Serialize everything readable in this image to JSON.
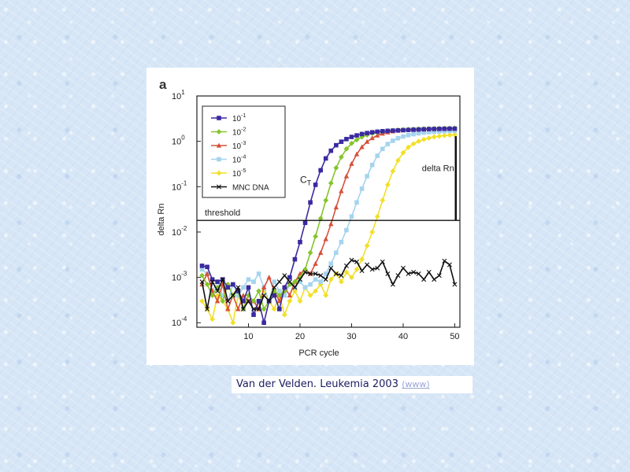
{
  "chart_data": {
    "type": "line",
    "panel_label": "a",
    "xlabel": "PCR cycle",
    "ylabel": "delta Rn",
    "xlim": [
      0,
      51
    ],
    "xticks": [
      10,
      20,
      30,
      40,
      50
    ],
    "ylim_log10": [
      -4.1,
      1.0
    ],
    "yticks": [
      {
        "base": "10",
        "exp": "1"
      },
      {
        "base": "10",
        "exp": "0"
      },
      {
        "base": "10",
        "exp": "-1"
      },
      {
        "base": "10",
        "exp": "-2"
      },
      {
        "base": "10",
        "exp": "-3"
      },
      {
        "base": "10",
        "exp": "-4"
      }
    ],
    "ytick_values_log10": [
      1,
      0,
      -1,
      -2,
      -3,
      -4
    ],
    "threshold": {
      "label": "threshold",
      "value": 0.018
    },
    "ct_label": {
      "main": "C",
      "sub": "T"
    },
    "delta_rn_label": "delta Rn",
    "x": [
      1,
      2,
      3,
      4,
      5,
      6,
      7,
      8,
      9,
      10,
      11,
      12,
      13,
      14,
      15,
      16,
      17,
      18,
      19,
      20,
      21,
      22,
      23,
      24,
      25,
      26,
      27,
      28,
      29,
      30,
      31,
      32,
      33,
      34,
      35,
      36,
      37,
      38,
      39,
      40,
      41,
      42,
      43,
      44,
      45,
      46,
      47,
      48,
      49,
      50
    ],
    "series": [
      {
        "name": "10-1",
        "base": "10",
        "exp": "-1",
        "color": "#3a2aa0",
        "marker": "square",
        "values": [
          0.0018,
          0.0017,
          0.0009,
          0.0008,
          0.0009,
          0.0006,
          0.0007,
          0.0005,
          0.0003,
          0.0006,
          0.00015,
          0.0003,
          0.0001,
          0.0003,
          0.0004,
          0.0002,
          0.0006,
          0.001,
          0.0025,
          0.006,
          0.016,
          0.045,
          0.11,
          0.23,
          0.42,
          0.62,
          0.82,
          0.98,
          1.12,
          1.25,
          1.35,
          1.45,
          1.52,
          1.58,
          1.63,
          1.67,
          1.7,
          1.72,
          1.74,
          1.76,
          1.78,
          1.8,
          1.82,
          1.84,
          1.86,
          1.87,
          1.88,
          1.89,
          1.9,
          1.9
        ]
      },
      {
        "name": "10-2",
        "base": "10",
        "exp": "-2",
        "color": "#86c42a",
        "marker": "diamond",
        "values": [
          0.0011,
          0.0007,
          0.0004,
          0.0006,
          0.0003,
          0.0007,
          0.0004,
          0.0005,
          0.0002,
          0.0004,
          0.0003,
          0.0005,
          0.0002,
          0.0003,
          0.0005,
          0.0004,
          0.0005,
          0.0007,
          0.0008,
          0.001,
          0.0015,
          0.0035,
          0.008,
          0.02,
          0.05,
          0.12,
          0.26,
          0.45,
          0.68,
          0.9,
          1.08,
          1.25,
          1.38,
          1.5,
          1.58,
          1.65,
          1.7,
          1.74,
          1.78,
          1.81,
          1.84,
          1.86,
          1.88,
          1.89,
          1.9,
          1.91,
          1.92,
          1.93,
          1.94,
          1.95
        ]
      },
      {
        "name": "10-3",
        "base": "10",
        "exp": "-3",
        "color": "#d8503a",
        "marker": "triangle",
        "values": [
          0.0007,
          0.0012,
          0.0005,
          0.0003,
          0.0007,
          0.0002,
          0.0004,
          0.0002,
          0.0004,
          0.0003,
          0.0003,
          0.0002,
          0.0006,
          0.001,
          0.0005,
          0.0003,
          0.0006,
          0.0004,
          0.0008,
          0.0012,
          0.0015,
          0.0012,
          0.002,
          0.0035,
          0.007,
          0.015,
          0.035,
          0.08,
          0.17,
          0.32,
          0.52,
          0.75,
          0.98,
          1.18,
          1.35,
          1.48,
          1.58,
          1.66,
          1.72,
          1.77,
          1.81,
          1.84,
          1.87,
          1.89,
          1.91,
          1.92,
          1.93,
          1.94,
          1.95,
          1.96
        ]
      },
      {
        "name": "10-4",
        "base": "10",
        "exp": "-4",
        "color": "#a6d4ee",
        "marker": "square",
        "values": [
          0.0015,
          0.0012,
          0.0005,
          0.0008,
          0.0004,
          0.0003,
          0.0007,
          0.0004,
          0.0006,
          0.0009,
          0.0008,
          0.0012,
          0.0006,
          0.0003,
          0.0008,
          0.0005,
          0.0004,
          0.0007,
          0.0006,
          0.0008,
          0.0006,
          0.0007,
          0.0009,
          0.0008,
          0.0012,
          0.002,
          0.0035,
          0.006,
          0.011,
          0.022,
          0.045,
          0.09,
          0.17,
          0.3,
          0.48,
          0.68,
          0.87,
          1.03,
          1.17,
          1.28,
          1.37,
          1.44,
          1.5,
          1.55,
          1.59,
          1.62,
          1.65,
          1.67,
          1.69,
          1.7
        ]
      },
      {
        "name": "10-5",
        "base": "10",
        "exp": "-5",
        "color": "#f2e028",
        "marker": "diamond",
        "values": [
          0.0003,
          0.0002,
          0.00012,
          0.0004,
          0.0003,
          0.0002,
          0.0001,
          0.0004,
          0.0002,
          0.0004,
          0.0003,
          0.0002,
          0.0005,
          0.0003,
          0.0002,
          0.0004,
          0.00015,
          0.0003,
          0.0005,
          0.0003,
          0.0006,
          0.0004,
          0.0005,
          0.0007,
          0.0004,
          0.0009,
          0.0012,
          0.0008,
          0.0013,
          0.001,
          0.0015,
          0.0025,
          0.005,
          0.01,
          0.022,
          0.05,
          0.11,
          0.22,
          0.38,
          0.56,
          0.74,
          0.88,
          1.0,
          1.1,
          1.18,
          1.25,
          1.3,
          1.34,
          1.37,
          1.4
        ]
      },
      {
        "name": "MNC DNA",
        "color": "#111111",
        "marker": "x",
        "values": [
          0.0008,
          0.0002,
          0.0008,
          0.0005,
          0.0009,
          0.0003,
          0.0004,
          0.0006,
          0.0002,
          0.0003,
          0.0002,
          0.0002,
          0.0004,
          0.0003,
          0.0006,
          0.0008,
          0.0011,
          0.0008,
          0.0006,
          0.0009,
          0.0013,
          0.0012,
          0.0012,
          0.0011,
          0.0009,
          0.0016,
          0.0012,
          0.0011,
          0.0018,
          0.0024,
          0.0022,
          0.0014,
          0.0019,
          0.0015,
          0.0016,
          0.0022,
          0.0012,
          0.0007,
          0.0011,
          0.0016,
          0.0012,
          0.0013,
          0.0012,
          0.0009,
          0.0013,
          0.0009,
          0.0011,
          0.0023,
          0.0019,
          0.0007
        ]
      }
    ]
  },
  "citation": {
    "text": "Van der Velden. Leukemia 2003",
    "link": "(www)"
  }
}
